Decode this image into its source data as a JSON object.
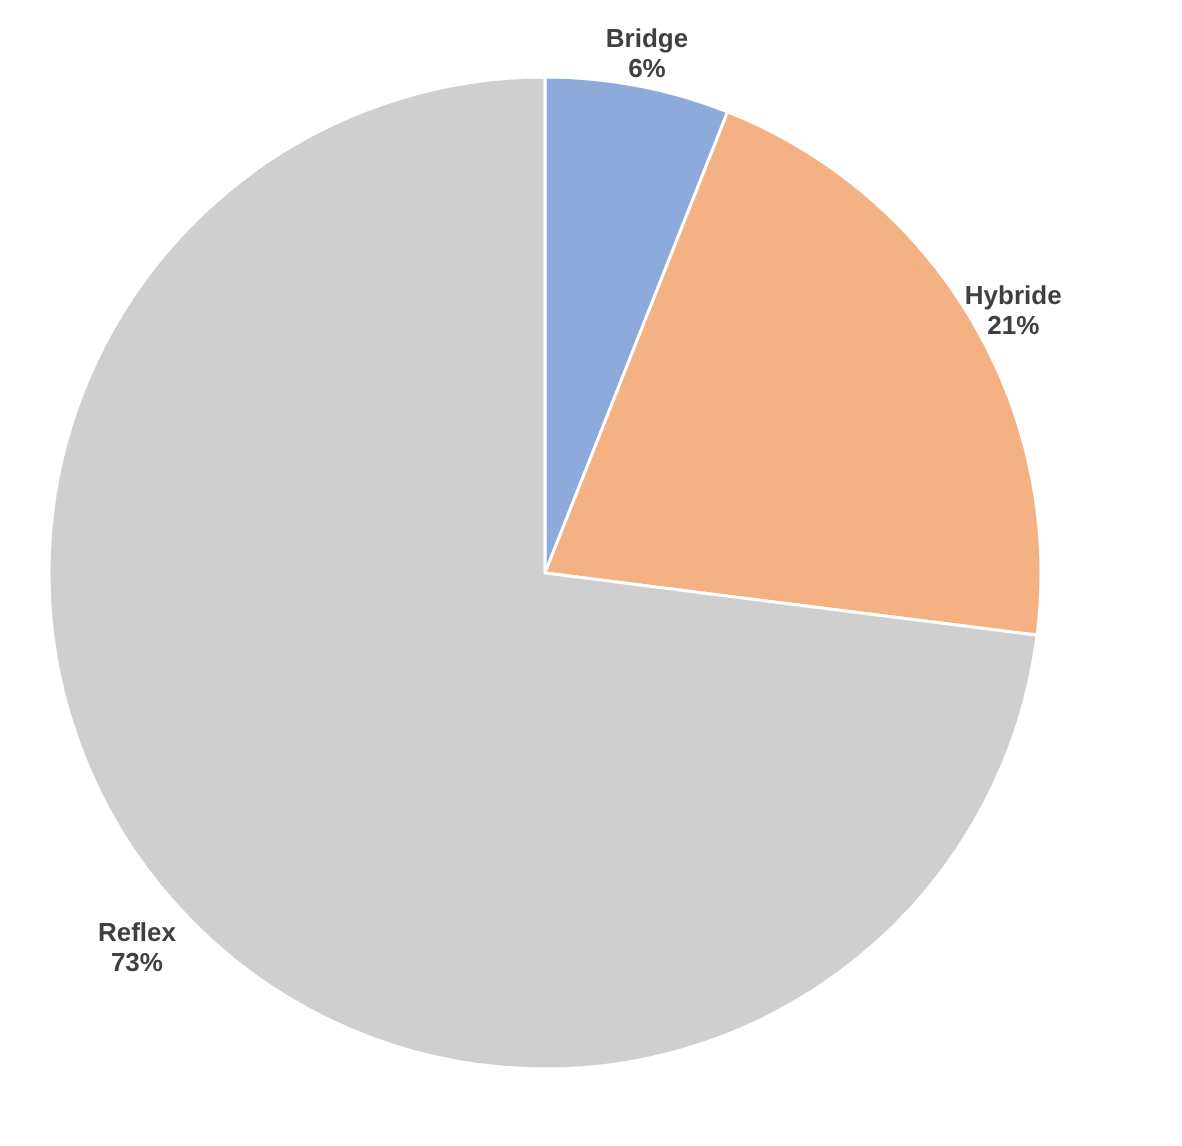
{
  "chart_data": {
    "type": "pie",
    "categories": [
      "Bridge",
      "Hybride",
      "Reflex"
    ],
    "values": [
      6,
      21,
      73
    ],
    "colors": [
      "#8eaadb",
      "#f4b183",
      "#cfcfcf"
    ],
    "value_labels": [
      "6%",
      "21%",
      "73%"
    ]
  }
}
